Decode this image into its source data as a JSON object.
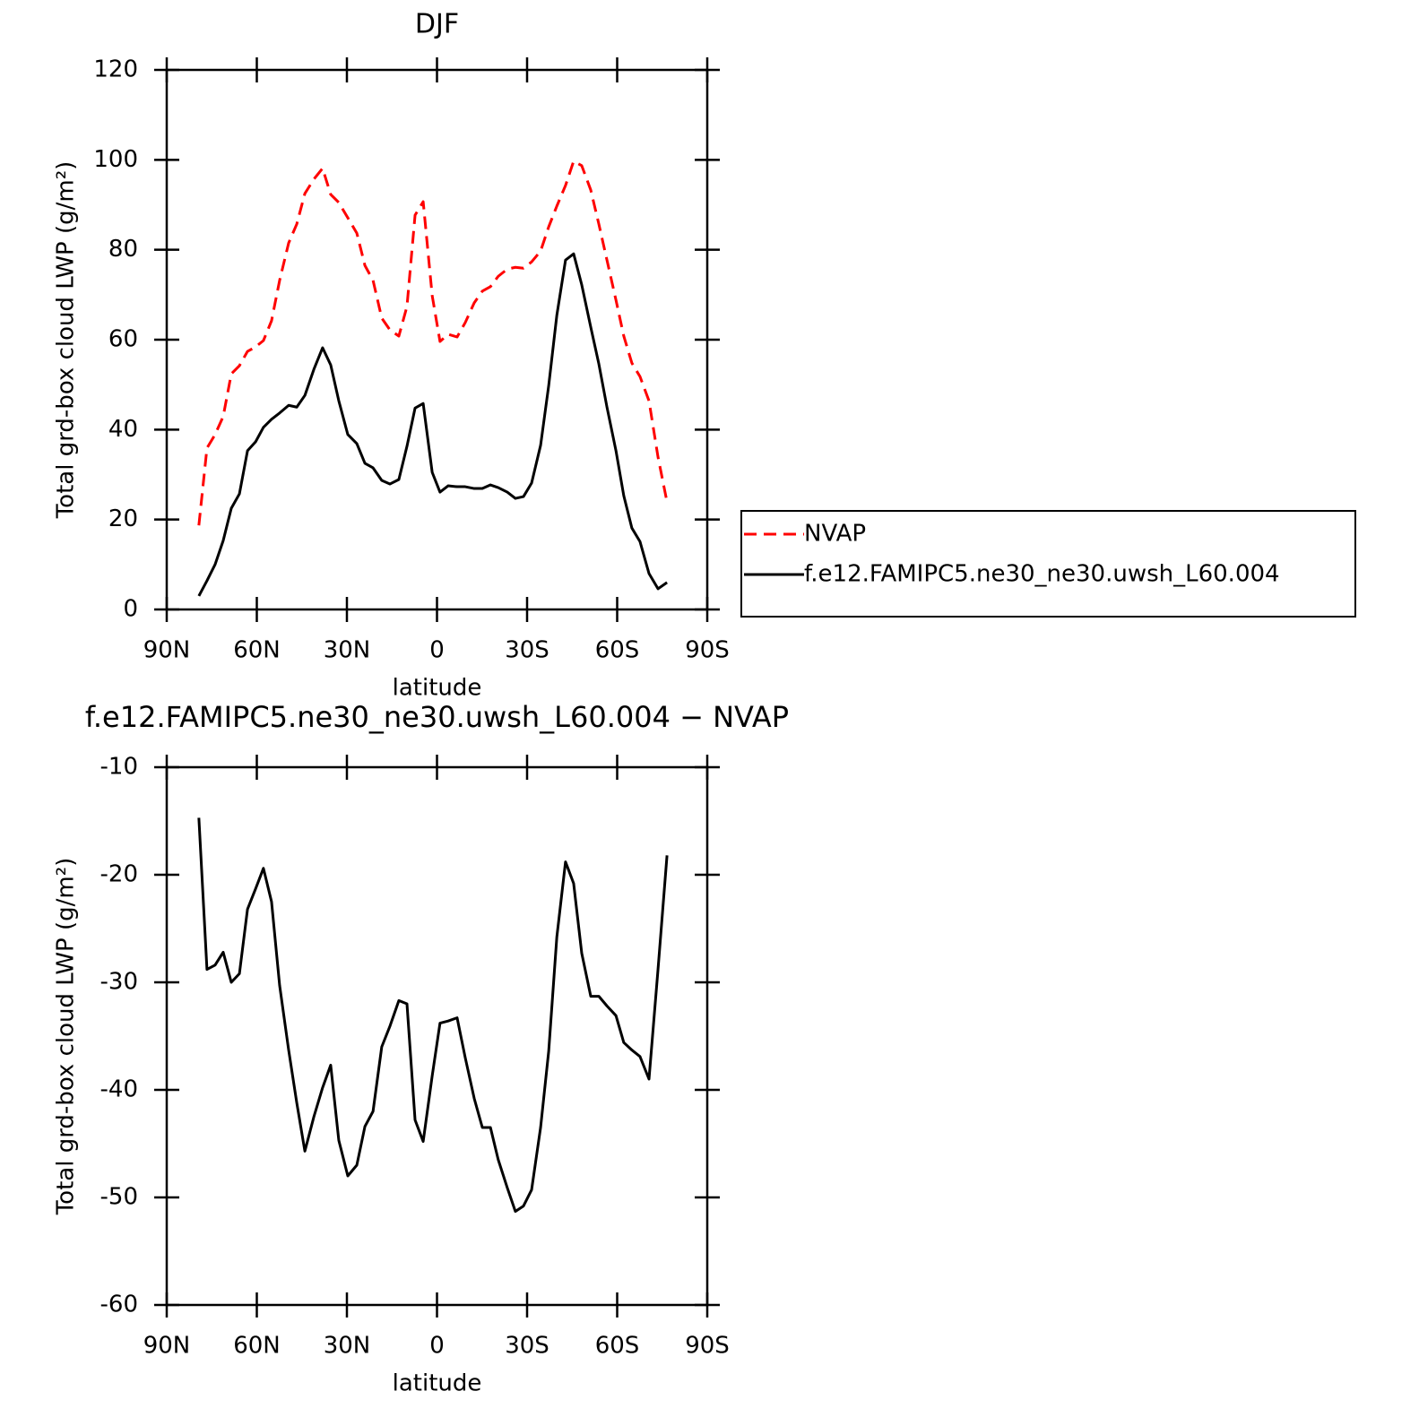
{
  "chart_data": [
    {
      "type": "line",
      "title": "DJF",
      "x_label": "latitude",
      "y_label": "Total grd-box cloud LWP (g/m²)",
      "x": [
        79.3,
        76.6,
        73.9,
        71.2,
        68.5,
        65.8,
        63.1,
        60.4,
        57.8,
        55.1,
        52.4,
        49.4,
        46.7,
        44.0,
        41.0,
        38.1,
        35.4,
        32.7,
        29.7,
        26.7,
        24.0,
        21.3,
        18.4,
        15.7,
        12.7,
        10.0,
        7.3,
        4.6,
        1.6,
        -1.0,
        -3.7,
        -6.7,
        -9.4,
        -12.4,
        -15.1,
        -17.8,
        -20.4,
        -23.4,
        -26.1,
        -28.8,
        -31.5,
        -34.5,
        -37.2,
        -39.9,
        -42.8,
        -45.5,
        -48.2,
        -51.2,
        -53.9,
        -56.6,
        -59.6,
        -62.2,
        -64.9,
        -67.6,
        -70.6,
        -73.6,
        -76.6
      ],
      "series": [
        {
          "name": "NVAP",
          "color": "#ff0000",
          "dash": "dashed",
          "values": [
            18.7,
            35.9,
            38.9,
            42.9,
            52.4,
            54.2,
            57.4,
            58.4,
            59.8,
            64.2,
            73.2,
            81.5,
            85.7,
            92.5,
            95.7,
            98.1,
            92.3,
            90.5,
            87.1,
            83.7,
            76.5,
            73.2,
            64.8,
            62.2,
            60.8,
            67.4,
            87.7,
            90.7,
            69.8,
            59.6,
            61.2,
            60.6,
            63.8,
            68.2,
            70.8,
            71.8,
            74.1,
            75.7,
            76.1,
            75.9,
            77.3,
            79.7,
            85.1,
            89.7,
            94.3,
            99.7,
            98.7,
            93.3,
            85.7,
            77.7,
            68.8,
            60.8,
            54.8,
            51.8,
            46.4,
            33.9,
            23.9
          ]
        },
        {
          "name": "f.e12.FAMIPC5.ne30_ne30.uwsh_L60.004",
          "color": "#000000",
          "dash": "solid",
          "values": [
            3.0,
            6.4,
            10.0,
            15.3,
            22.5,
            25.7,
            35.3,
            37.3,
            40.5,
            42.3,
            43.7,
            45.4,
            45.0,
            47.6,
            53.4,
            58.2,
            54.4,
            46.4,
            38.9,
            36.9,
            32.5,
            31.5,
            28.7,
            27.9,
            28.9,
            36.3,
            44.8,
            45.8,
            30.5,
            26.1,
            27.5,
            27.3,
            27.3,
            26.9,
            26.9,
            27.7,
            27.1,
            26.1,
            24.7,
            25.1,
            28.1,
            36.5,
            49.8,
            65.4,
            77.7,
            79.1,
            72.2,
            62.8,
            54.6,
            45.0,
            35.3,
            25.3,
            18.1,
            15.1,
            8.0,
            4.6,
            6.0
          ]
        }
      ],
      "xlim": [
        90,
        -90
      ],
      "xticks": [
        {
          "value": 90,
          "label": "90N"
        },
        {
          "value": 60,
          "label": "60N"
        },
        {
          "value": 30,
          "label": "30N"
        },
        0,
        {
          "value": -30,
          "label": "30S"
        },
        {
          "value": -60,
          "label": "60S"
        },
        {
          "value": -90,
          "label": "90S"
        }
      ],
      "ylim": [
        0,
        120
      ],
      "yticks": [
        0,
        20,
        40,
        60,
        80,
        100,
        120
      ],
      "legend": "right"
    },
    {
      "type": "line",
      "title": "f.e12.FAMIPC5.ne30_ne30.uwsh_L60.004 − NVAP",
      "x_label": "latitude",
      "y_label": "Total grd-box cloud LWP (g/m²)",
      "x": [
        79.3,
        76.6,
        73.9,
        71.2,
        68.5,
        65.8,
        63.1,
        60.4,
        57.8,
        55.1,
        52.4,
        49.4,
        46.7,
        44.0,
        41.0,
        38.1,
        35.4,
        32.7,
        29.7,
        26.7,
        24.0,
        21.3,
        18.4,
        15.7,
        12.7,
        10.0,
        7.3,
        4.6,
        1.6,
        -1.0,
        -3.7,
        -6.7,
        -9.4,
        -12.4,
        -15.1,
        -17.8,
        -20.4,
        -23.4,
        -26.1,
        -28.8,
        -31.5,
        -34.5,
        -37.2,
        -39.9,
        -42.8,
        -45.5,
        -48.2,
        -51.2,
        -53.9,
        -56.6,
        -59.6,
        -62.2,
        -64.9,
        -67.6,
        -70.6,
        -73.6,
        -76.6
      ],
      "color": "#000000",
      "values": [
        -14.7,
        -28.8,
        -28.4,
        -27.2,
        -30.0,
        -29.2,
        -23.2,
        -21.3,
        -19.4,
        -22.5,
        -30.3,
        -36.3,
        -41.2,
        -45.7,
        -42.5,
        -39.8,
        -37.7,
        -44.7,
        -48.0,
        -47.0,
        -43.4,
        -42.0,
        -36.0,
        -34.1,
        -31.7,
        -32.0,
        -42.8,
        -44.8,
        -38.7,
        -33.8,
        -33.6,
        -33.3,
        -37.0,
        -40.8,
        -43.5,
        -43.5,
        -46.5,
        -49.1,
        -51.3,
        -50.8,
        -49.3,
        -43.5,
        -36.4,
        -25.8,
        -18.8,
        -20.8,
        -27.3,
        -31.3,
        -31.3,
        -32.2,
        -33.1,
        -35.6,
        -36.3,
        -36.9,
        -39.0,
        -28.8,
        -18.2
      ],
      "xlim": [
        90,
        -90
      ],
      "xticks": [
        {
          "value": 90,
          "label": "90N"
        },
        {
          "value": 60,
          "label": "60N"
        },
        {
          "value": 30,
          "label": "30N"
        },
        0,
        {
          "value": -30,
          "label": "30S"
        },
        {
          "value": -60,
          "label": "60S"
        },
        {
          "value": -90,
          "label": "90S"
        }
      ],
      "ylim": [
        -60,
        -10
      ],
      "yticks": [
        -60,
        -50,
        -40,
        -30,
        -20,
        -10
      ]
    }
  ]
}
